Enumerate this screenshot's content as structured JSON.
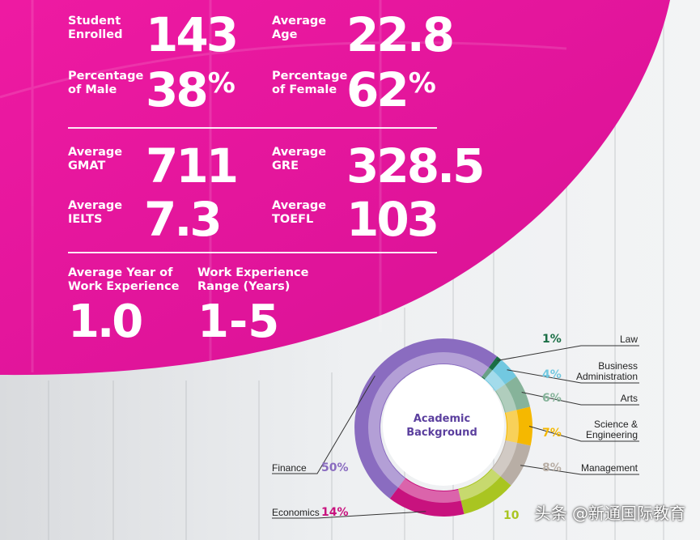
{
  "stats": {
    "students": {
      "label1": "Student",
      "label2": "Enrolled",
      "value": "143"
    },
    "age": {
      "label1": "Average",
      "label2": "Age",
      "value": "22.8"
    },
    "male": {
      "label1": "Percentage",
      "label2": "of Male",
      "value": "38",
      "unit": "%"
    },
    "female": {
      "label1": "Percentage",
      "label2": "of Female",
      "value": "62",
      "unit": "%"
    },
    "gmat": {
      "label1": "Average",
      "label2": "GMAT",
      "value": "711"
    },
    "gre": {
      "label1": "Average",
      "label2": "GRE",
      "value": "328.5"
    },
    "ielts": {
      "label1": "Average",
      "label2": "IELTS",
      "value": "7.3"
    },
    "toefl": {
      "label1": "Average",
      "label2": "TOEFL",
      "value": "103"
    },
    "work_years": {
      "label1": "Average Year of",
      "label2": "Work Experience",
      "value": "1.0"
    },
    "work_range": {
      "label1": "Work Experience",
      "label2": "Range (Years)",
      "value": "1-5"
    }
  },
  "colors": {
    "magenta": "#e5199b",
    "finance": "#8a6cc0",
    "economics": "#c8127e",
    "management": "#b8aea5",
    "science_engineering": "#f5b800",
    "arts": "#86b39a",
    "business_administration": "#72c8e0",
    "law": "#1a6e45"
  },
  "watermark": "头条 @新通国际教育",
  "chart_data": {
    "type": "pie",
    "center_label": [
      "Academic",
      "Background"
    ],
    "slices": [
      {
        "name": "Law",
        "label_lines": [
          "Law"
        ],
        "value": 1,
        "pct_text": "1%",
        "color": "#1a6e45"
      },
      {
        "name": "Business Administration",
        "label_lines": [
          "Business",
          "Administration"
        ],
        "value": 4,
        "pct_text": "4%",
        "color": "#72c8e0"
      },
      {
        "name": "Arts",
        "label_lines": [
          "Arts"
        ],
        "value": 6,
        "pct_text": "6%",
        "color": "#86b39a"
      },
      {
        "name": "Science & Engineering",
        "label_lines": [
          "Science &",
          "Engineering"
        ],
        "value": 7,
        "pct_text": "7%",
        "color": "#f5b800"
      },
      {
        "name": "Management",
        "label_lines": [
          "Management"
        ],
        "value": 8,
        "pct_text": "8%",
        "color": "#b8aea5"
      },
      {
        "name": "",
        "label_lines": [],
        "value": 10,
        "pct_text": "10",
        "color": "#a9c521"
      },
      {
        "name": "Economics",
        "label_lines": [
          "Economics"
        ],
        "value": 14,
        "pct_text": "14%",
        "color": "#c8127e"
      },
      {
        "name": "Finance",
        "label_lines": [
          "Finance"
        ],
        "value": 50,
        "pct_text": "50%",
        "color": "#8a6cc0"
      }
    ]
  }
}
